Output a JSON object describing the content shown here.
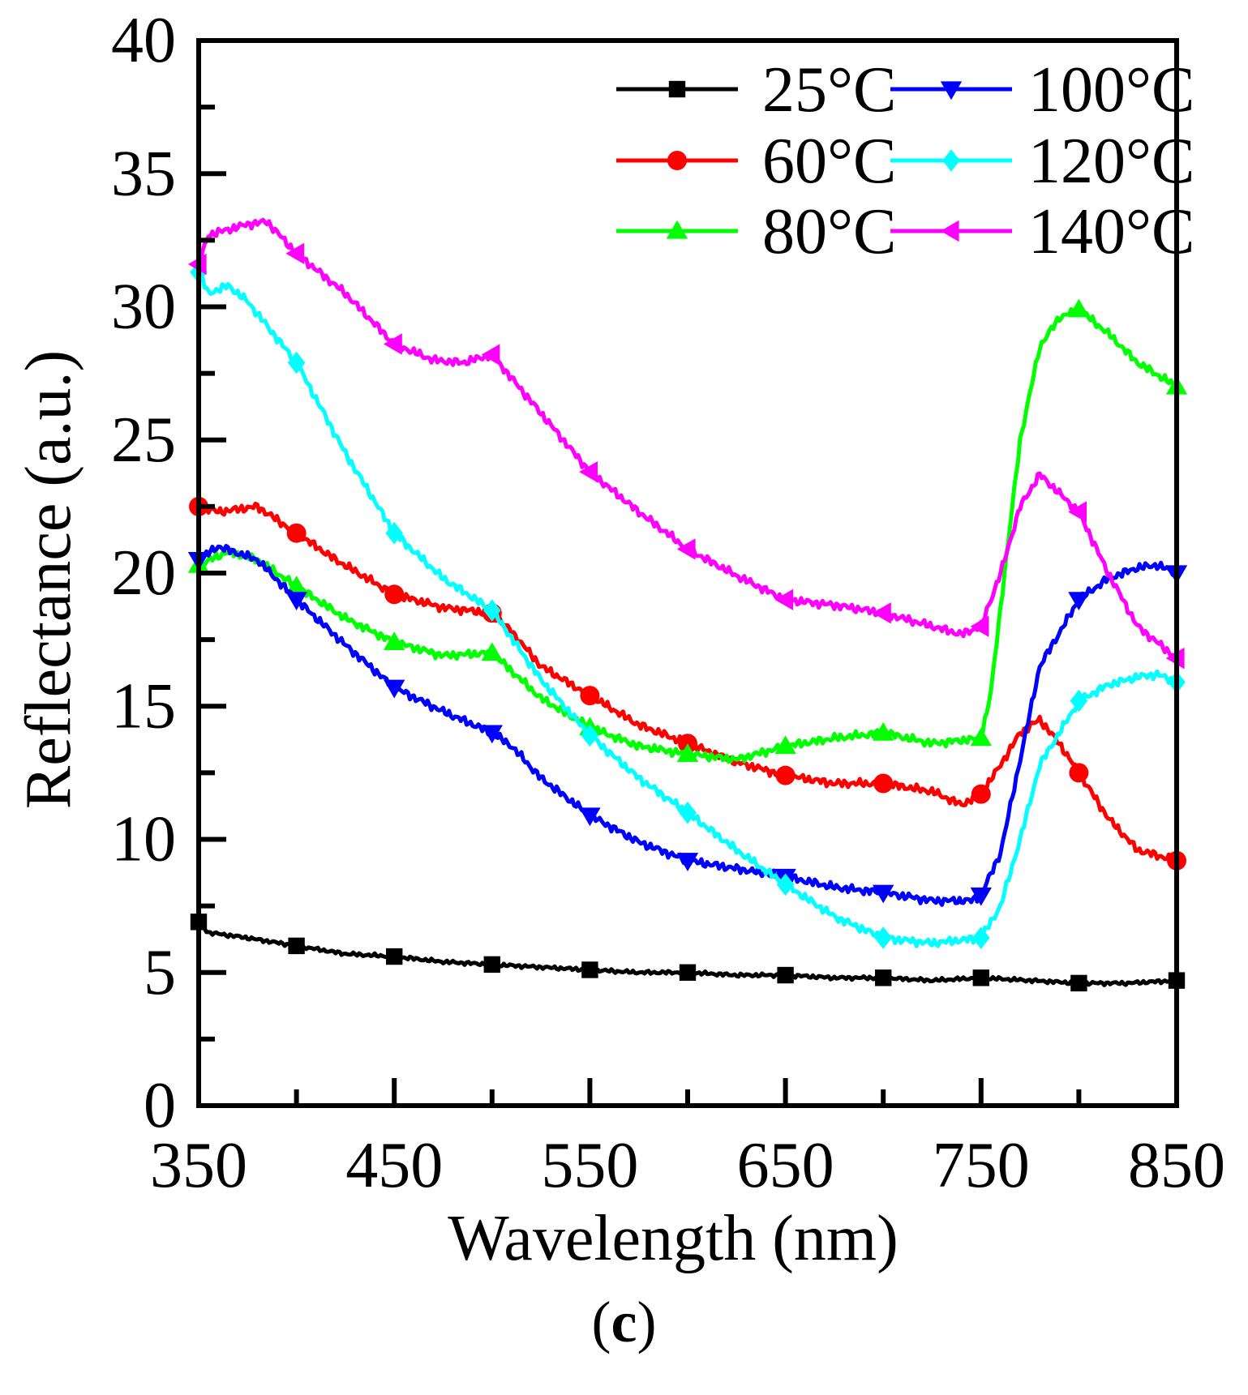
{
  "chart_data": {
    "type": "line",
    "title": "",
    "xlabel": "Wavelength (nm)",
    "ylabel": "Reflectance (a.u.)",
    "xlim": [
      350,
      850
    ],
    "ylim": [
      0,
      40
    ],
    "x_ticks": [
      "350",
      "450",
      "550",
      "650",
      "750",
      "850"
    ],
    "y_ticks": [
      "0",
      "5",
      "10",
      "15",
      "20",
      "25",
      "30",
      "35",
      "40"
    ],
    "legend_position": "top-right",
    "panel_label": {
      "open": "(",
      "letter": "c",
      "close": ")"
    },
    "series": [
      {
        "name": "25°C",
        "color": "#000000",
        "marker": "square",
        "points": [
          [
            350,
            6.9
          ],
          [
            355,
            6.5
          ],
          [
            375,
            6.3
          ],
          [
            400,
            6.0
          ],
          [
            425,
            5.7
          ],
          [
            450,
            5.6
          ],
          [
            475,
            5.4
          ],
          [
            500,
            5.3
          ],
          [
            525,
            5.2
          ],
          [
            550,
            5.1
          ],
          [
            575,
            5.0
          ],
          [
            600,
            5.0
          ],
          [
            625,
            4.9
          ],
          [
            650,
            4.9
          ],
          [
            675,
            4.8
          ],
          [
            700,
            4.8
          ],
          [
            725,
            4.7
          ],
          [
            750,
            4.8
          ],
          [
            775,
            4.7
          ],
          [
            800,
            4.6
          ],
          [
            825,
            4.6
          ],
          [
            850,
            4.7
          ]
        ],
        "markers": [
          350,
          400,
          450,
          500,
          550,
          600,
          650,
          700,
          750,
          800,
          850
        ]
      },
      {
        "name": "60°C",
        "color": "#ff0000",
        "marker": "circle",
        "points": [
          [
            350,
            22.5
          ],
          [
            360,
            22.3
          ],
          [
            380,
            22.5
          ],
          [
            390,
            22.0
          ],
          [
            400,
            21.5
          ],
          [
            420,
            20.5
          ],
          [
            450,
            19.2
          ],
          [
            475,
            18.7
          ],
          [
            500,
            18.5
          ],
          [
            510,
            17.8
          ],
          [
            525,
            16.5
          ],
          [
            550,
            15.4
          ],
          [
            575,
            14.3
          ],
          [
            600,
            13.6
          ],
          [
            625,
            12.9
          ],
          [
            650,
            12.4
          ],
          [
            675,
            12.1
          ],
          [
            700,
            12.1
          ],
          [
            725,
            11.8
          ],
          [
            740,
            11.3
          ],
          [
            750,
            11.7
          ],
          [
            760,
            12.8
          ],
          [
            770,
            14.0
          ],
          [
            780,
            14.5
          ],
          [
            790,
            13.6
          ],
          [
            800,
            12.5
          ],
          [
            815,
            10.8
          ],
          [
            830,
            9.6
          ],
          [
            850,
            9.2
          ]
        ],
        "markers": [
          350,
          400,
          450,
          500,
          550,
          600,
          650,
          700,
          750,
          800,
          850
        ]
      },
      {
        "name": "80°C",
        "color": "#00ff00",
        "marker": "triangle-up",
        "points": [
          [
            350,
            20.3
          ],
          [
            365,
            20.8
          ],
          [
            380,
            20.5
          ],
          [
            400,
            19.5
          ],
          [
            425,
            18.3
          ],
          [
            450,
            17.4
          ],
          [
            475,
            16.9
          ],
          [
            500,
            17.0
          ],
          [
            525,
            15.3
          ],
          [
            550,
            14.2
          ],
          [
            575,
            13.5
          ],
          [
            600,
            13.2
          ],
          [
            625,
            13.0
          ],
          [
            650,
            13.5
          ],
          [
            675,
            13.8
          ],
          [
            700,
            14.0
          ],
          [
            725,
            13.6
          ],
          [
            750,
            13.8
          ],
          [
            755,
            15.5
          ],
          [
            762,
            20.0
          ],
          [
            770,
            25.0
          ],
          [
            780,
            28.5
          ],
          [
            790,
            29.6
          ],
          [
            800,
            29.9
          ],
          [
            815,
            29.0
          ],
          [
            830,
            27.9
          ],
          [
            850,
            27.0
          ]
        ],
        "markers": [
          350,
          400,
          450,
          500,
          550,
          600,
          650,
          700,
          750,
          800,
          850
        ]
      },
      {
        "name": "100°C",
        "color": "#0000ff",
        "marker": "triangle-down",
        "points": [
          [
            350,
            20.5
          ],
          [
            360,
            21.0
          ],
          [
            380,
            20.5
          ],
          [
            400,
            19.0
          ],
          [
            425,
            17.3
          ],
          [
            450,
            15.7
          ],
          [
            475,
            14.8
          ],
          [
            500,
            14.0
          ],
          [
            510,
            13.5
          ],
          [
            525,
            12.3
          ],
          [
            550,
            10.9
          ],
          [
            575,
            9.9
          ],
          [
            600,
            9.2
          ],
          [
            625,
            8.9
          ],
          [
            650,
            8.6
          ],
          [
            675,
            8.2
          ],
          [
            700,
            8.0
          ],
          [
            725,
            7.7
          ],
          [
            745,
            7.7
          ],
          [
            750,
            7.9
          ],
          [
            760,
            9.5
          ],
          [
            770,
            13.0
          ],
          [
            780,
            16.5
          ],
          [
            800,
            19.0
          ],
          [
            815,
            19.8
          ],
          [
            830,
            20.2
          ],
          [
            840,
            20.3
          ],
          [
            850,
            20.0
          ]
        ],
        "markers": [
          350,
          400,
          450,
          500,
          550,
          600,
          650,
          700,
          750,
          800,
          850
        ]
      },
      {
        "name": "120°C",
        "color": "#00ffff",
        "marker": "diamond",
        "points": [
          [
            350,
            31.3
          ],
          [
            355,
            30.5
          ],
          [
            365,
            30.8
          ],
          [
            375,
            30.2
          ],
          [
            400,
            27.9
          ],
          [
            425,
            24.5
          ],
          [
            450,
            21.5
          ],
          [
            475,
            19.8
          ],
          [
            500,
            18.6
          ],
          [
            525,
            16.0
          ],
          [
            550,
            13.9
          ],
          [
            575,
            12.3
          ],
          [
            600,
            11.0
          ],
          [
            625,
            9.6
          ],
          [
            650,
            8.3
          ],
          [
            675,
            7.1
          ],
          [
            700,
            6.3
          ],
          [
            725,
            6.1
          ],
          [
            750,
            6.3
          ],
          [
            760,
            7.5
          ],
          [
            770,
            10.0
          ],
          [
            780,
            12.8
          ],
          [
            800,
            15.2
          ],
          [
            815,
            15.8
          ],
          [
            830,
            16.1
          ],
          [
            840,
            16.2
          ],
          [
            850,
            15.9
          ]
        ],
        "markers": [
          350,
          400,
          450,
          500,
          550,
          600,
          650,
          700,
          750,
          800,
          850
        ]
      },
      {
        "name": "140°C",
        "color": "#ff00ff",
        "marker": "triangle-left",
        "points": [
          [
            350,
            31.6
          ],
          [
            355,
            32.7
          ],
          [
            365,
            32.9
          ],
          [
            375,
            33.1
          ],
          [
            385,
            33.2
          ],
          [
            400,
            32.0
          ],
          [
            425,
            30.5
          ],
          [
            450,
            28.6
          ],
          [
            470,
            28.0
          ],
          [
            485,
            27.9
          ],
          [
            500,
            28.2
          ],
          [
            525,
            26.0
          ],
          [
            550,
            23.8
          ],
          [
            575,
            22.3
          ],
          [
            600,
            20.9
          ],
          [
            625,
            19.9
          ],
          [
            650,
            19.0
          ],
          [
            675,
            18.8
          ],
          [
            700,
            18.5
          ],
          [
            725,
            18.0
          ],
          [
            740,
            17.7
          ],
          [
            750,
            18.0
          ],
          [
            760,
            20.0
          ],
          [
            770,
            22.5
          ],
          [
            780,
            23.7
          ],
          [
            790,
            23.0
          ],
          [
            800,
            22.3
          ],
          [
            815,
            20.0
          ],
          [
            830,
            18.0
          ],
          [
            850,
            16.8
          ]
        ],
        "markers": [
          350,
          400,
          450,
          500,
          550,
          600,
          650,
          700,
          750,
          800,
          850
        ]
      }
    ]
  }
}
